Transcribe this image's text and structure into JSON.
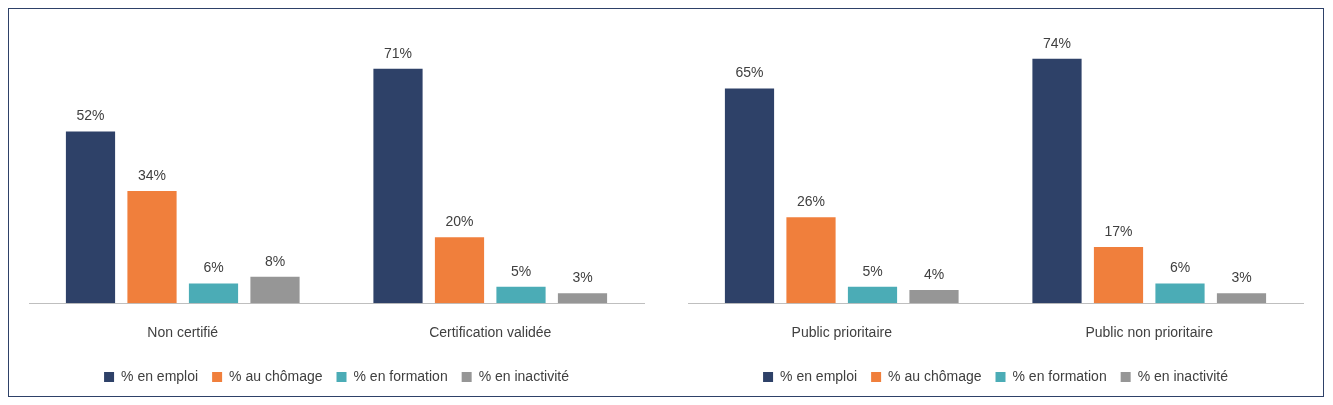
{
  "chart_data": [
    {
      "type": "bar",
      "categories": [
        "Non certifié",
        "Certification validée"
      ],
      "legend": "bottom",
      "series": [
        {
          "name": "% en emploi",
          "color": "#2e4168",
          "values": [
            52,
            71
          ],
          "value_labels": [
            "52%",
            "71%"
          ]
        },
        {
          "name": "% au chômage",
          "color": "#f07f3c",
          "values": [
            34,
            20
          ],
          "value_labels": [
            "34%",
            "20%"
          ]
        },
        {
          "name": "% en formation",
          "color": "#4bacb6",
          "values": [
            6,
            5
          ],
          "value_labels": [
            "6%",
            "5%"
          ]
        },
        {
          "name": "% en inactivité",
          "color": "#969696",
          "values": [
            8,
            3
          ],
          "value_labels": [
            "8%",
            "3%"
          ]
        }
      ]
    },
    {
      "type": "bar",
      "categories": [
        "Public prioritaire",
        "Public non prioritaire"
      ],
      "legend": "bottom",
      "series": [
        {
          "name": "% en emploi",
          "color": "#2e4168",
          "values": [
            65,
            74
          ],
          "value_labels": [
            "65%",
            "74%"
          ]
        },
        {
          "name": "% au chômage",
          "color": "#f07f3c",
          "values": [
            26,
            17
          ],
          "value_labels": [
            "26%",
            "17%"
          ]
        },
        {
          "name": "% en formation",
          "color": "#4bacb6",
          "values": [
            5,
            6
          ],
          "value_labels": [
            "5%",
            "6%"
          ]
        },
        {
          "name": "% en inactivité",
          "color": "#969696",
          "values": [
            4,
            3
          ],
          "value_labels": [
            "4%",
            "3%"
          ]
        }
      ]
    }
  ]
}
